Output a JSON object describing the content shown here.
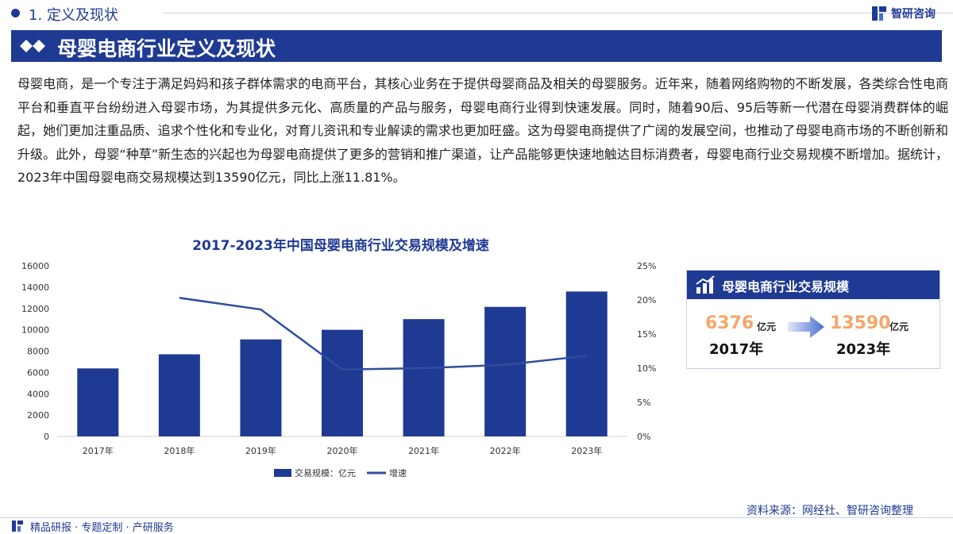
{
  "header": {
    "section_title": "1. 定义及现状",
    "logo_text": "智研咨询"
  },
  "banner": {
    "title": "母婴电商行业定义及现状"
  },
  "body": {
    "paragraph": "母婴电商，是一个专注于满足妈妈和孩子群体需求的电商平台，其核心业务在于提供母婴商品及相关的母婴服务。近年来，随着网络购物的不断发展，各类综合性电商平台和垂直平台纷纷进入母婴市场，为其提供多元化、高质量的产品与服务，母婴电商行业得到快速发展。同时，随着90后、95后等新一代潜在母婴消费群体的崛起，她们更加注重品质、追求个性化和专业化，对育儿资讯和专业解读的需求也更加旺盛。这为母婴电商提供了广阔的发展空间，也推动了母婴电商市场的不断创新和升级。此外，母婴“种草”新生态的兴起也为母婴电商提供了更多的营销和推广渠道，让产品能够更快速地触达目标消费者，母婴电商行业交易规模不断增加。据统计，2023年中国母婴电商交易规模达到13590亿元，同比上涨11.81%。"
  },
  "chart_data": {
    "type": "bar",
    "title": "2017-2023年中国母婴电商行业交易规模及增速",
    "categories": [
      "2017年",
      "2018年",
      "2019年",
      "2020年",
      "2021年",
      "2022年",
      "2023年"
    ],
    "series": [
      {
        "name": "交易规模：亿元",
        "type": "bar",
        "axis": "left",
        "values": [
          6376,
          7700,
          9100,
          10000,
          11000,
          12150,
          13590
        ]
      },
      {
        "name": "增速",
        "type": "line",
        "axis": "right",
        "values": [
          null,
          20.3,
          18.6,
          9.8,
          10.0,
          10.5,
          11.81
        ]
      }
    ],
    "y_left": {
      "min": 0,
      "max": 16000,
      "ticks": [
        "0",
        "2000",
        "4000",
        "6000",
        "8000",
        "10000",
        "12000",
        "14000",
        "16000"
      ]
    },
    "y_right": {
      "min": 0,
      "max": 25,
      "ticks": [
        "0%",
        "5%",
        "10%",
        "15%",
        "20%",
        "25%"
      ]
    },
    "legend_position": "bottom",
    "grid": false,
    "colors": {
      "bar": "#1f3a93",
      "line": "#2f4d9e"
    }
  },
  "card": {
    "title": "母婴电商行业交易规模",
    "start_value": "6376",
    "start_unit": "亿元",
    "start_year": "2017年",
    "end_value": "13590",
    "end_unit": "亿元",
    "end_year": "2023年"
  },
  "source": "资料来源：网经社、智研咨询整理",
  "footer": {
    "text": "精品研报 · 专题定制 · 产研服务"
  },
  "colors": {
    "primary": "#1f3a93",
    "accent_orange": "#f5a66a"
  }
}
